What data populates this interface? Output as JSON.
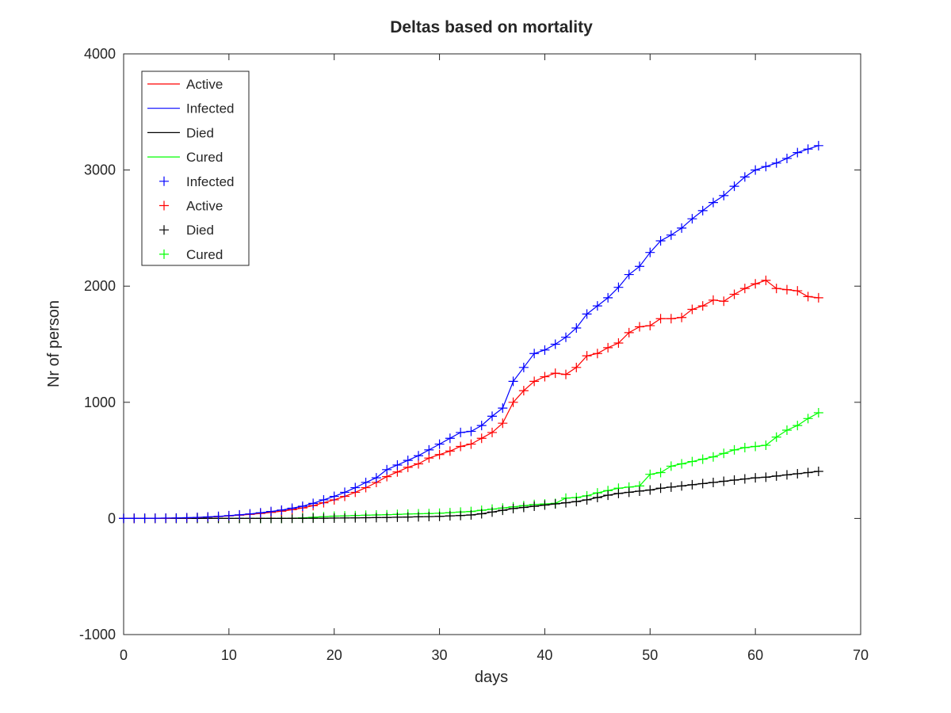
{
  "chart_data": {
    "type": "line",
    "title": "Deltas based on mortality",
    "xlabel": "days",
    "ylabel": "Nr of person",
    "xlim": [
      0,
      70
    ],
    "ylim": [
      -1000,
      4000
    ],
    "x_ticks": [
      "0",
      "10",
      "20",
      "30",
      "40",
      "50",
      "60",
      "70"
    ],
    "y_ticks": [
      "-1000",
      "0",
      "1000",
      "2000",
      "3000",
      "4000"
    ],
    "grid": false,
    "legend_position": "top-left",
    "x": [
      0,
      1,
      2,
      3,
      4,
      5,
      6,
      7,
      8,
      9,
      10,
      11,
      12,
      13,
      14,
      15,
      16,
      17,
      18,
      19,
      20,
      21,
      22,
      23,
      24,
      25,
      26,
      27,
      28,
      29,
      30,
      31,
      32,
      33,
      34,
      35,
      36,
      37,
      38,
      39,
      40,
      41,
      42,
      43,
      44,
      45,
      46,
      47,
      48,
      49,
      50,
      51,
      52,
      53,
      54,
      55,
      56,
      57,
      58,
      59,
      60,
      61,
      62,
      63,
      64,
      65,
      66
    ],
    "series": [
      {
        "name": "Active",
        "color": "#ff0000",
        "values": [
          0,
          0,
          0,
          1,
          2,
          3,
          5,
          8,
          12,
          16,
          22,
          28,
          35,
          43,
          52,
          62,
          75,
          90,
          110,
          135,
          160,
          190,
          225,
          265,
          310,
          360,
          400,
          440,
          470,
          520,
          550,
          580,
          620,
          640,
          690,
          740,
          820,
          1000,
          1100,
          1180,
          1220,
          1250,
          1240,
          1300,
          1400,
          1420,
          1470,
          1510,
          1600,
          1650,
          1660,
          1720,
          1720,
          1730,
          1800,
          1830,
          1880,
          1870,
          1930,
          1980,
          2020,
          2050,
          1980,
          1970,
          1960,
          1910,
          1900
        ]
      },
      {
        "name": "Infected",
        "color": "#0000ff",
        "values": [
          0,
          1,
          1,
          2,
          3,
          4,
          6,
          9,
          13,
          18,
          24,
          31,
          39,
          49,
          60,
          72,
          88,
          105,
          130,
          160,
          190,
          225,
          265,
          310,
          350,
          420,
          460,
          500,
          540,
          590,
          640,
          690,
          740,
          750,
          800,
          880,
          950,
          1180,
          1300,
          1420,
          1450,
          1500,
          1560,
          1640,
          1760,
          1830,
          1900,
          1990,
          2100,
          2170,
          2290,
          2390,
          2440,
          2500,
          2580,
          2650,
          2720,
          2780,
          2860,
          2940,
          3000,
          3030,
          3060,
          3100,
          3150,
          3180,
          3210
        ]
      },
      {
        "name": "Died",
        "color": "#000000",
        "values": [
          0,
          0,
          0,
          0,
          0,
          0,
          0,
          0,
          0,
          0,
          0,
          0,
          0,
          0,
          0,
          0,
          1,
          1,
          2,
          2,
          3,
          4,
          5,
          6,
          7,
          8,
          10,
          12,
          14,
          16,
          18,
          22,
          25,
          30,
          40,
          55,
          70,
          85,
          95,
          105,
          115,
          125,
          135,
          145,
          160,
          180,
          200,
          215,
          225,
          235,
          245,
          260,
          270,
          280,
          290,
          300,
          310,
          320,
          330,
          340,
          350,
          355,
          365,
          375,
          385,
          395,
          405
        ]
      },
      {
        "name": "Cured",
        "color": "#00ff00",
        "values": [
          0,
          0,
          0,
          0,
          0,
          0,
          0,
          0,
          0,
          0,
          0,
          0,
          0,
          0,
          0,
          0,
          2,
          5,
          10,
          15,
          20,
          22,
          25,
          28,
          30,
          32,
          35,
          38,
          40,
          42,
          45,
          50,
          55,
          60,
          70,
          80,
          90,
          100,
          110,
          120,
          125,
          130,
          175,
          180,
          195,
          220,
          240,
          260,
          270,
          280,
          380,
          395,
          450,
          470,
          490,
          510,
          530,
          560,
          590,
          610,
          620,
          630,
          700,
          760,
          800,
          860,
          910
        ]
      }
    ],
    "legend_entries": [
      {
        "label": "Active",
        "color": "#ff0000",
        "style": "line"
      },
      {
        "label": "Infected",
        "color": "#0000ff",
        "style": "line"
      },
      {
        "label": "Died",
        "color": "#000000",
        "style": "line"
      },
      {
        "label": "Cured",
        "color": "#00ff00",
        "style": "line"
      },
      {
        "label": "Infected",
        "color": "#0000ff",
        "style": "marker"
      },
      {
        "label": "Active",
        "color": "#ff0000",
        "style": "marker"
      },
      {
        "label": "Died",
        "color": "#000000",
        "style": "marker"
      },
      {
        "label": "Cured",
        "color": "#00ff00",
        "style": "marker"
      }
    ]
  }
}
